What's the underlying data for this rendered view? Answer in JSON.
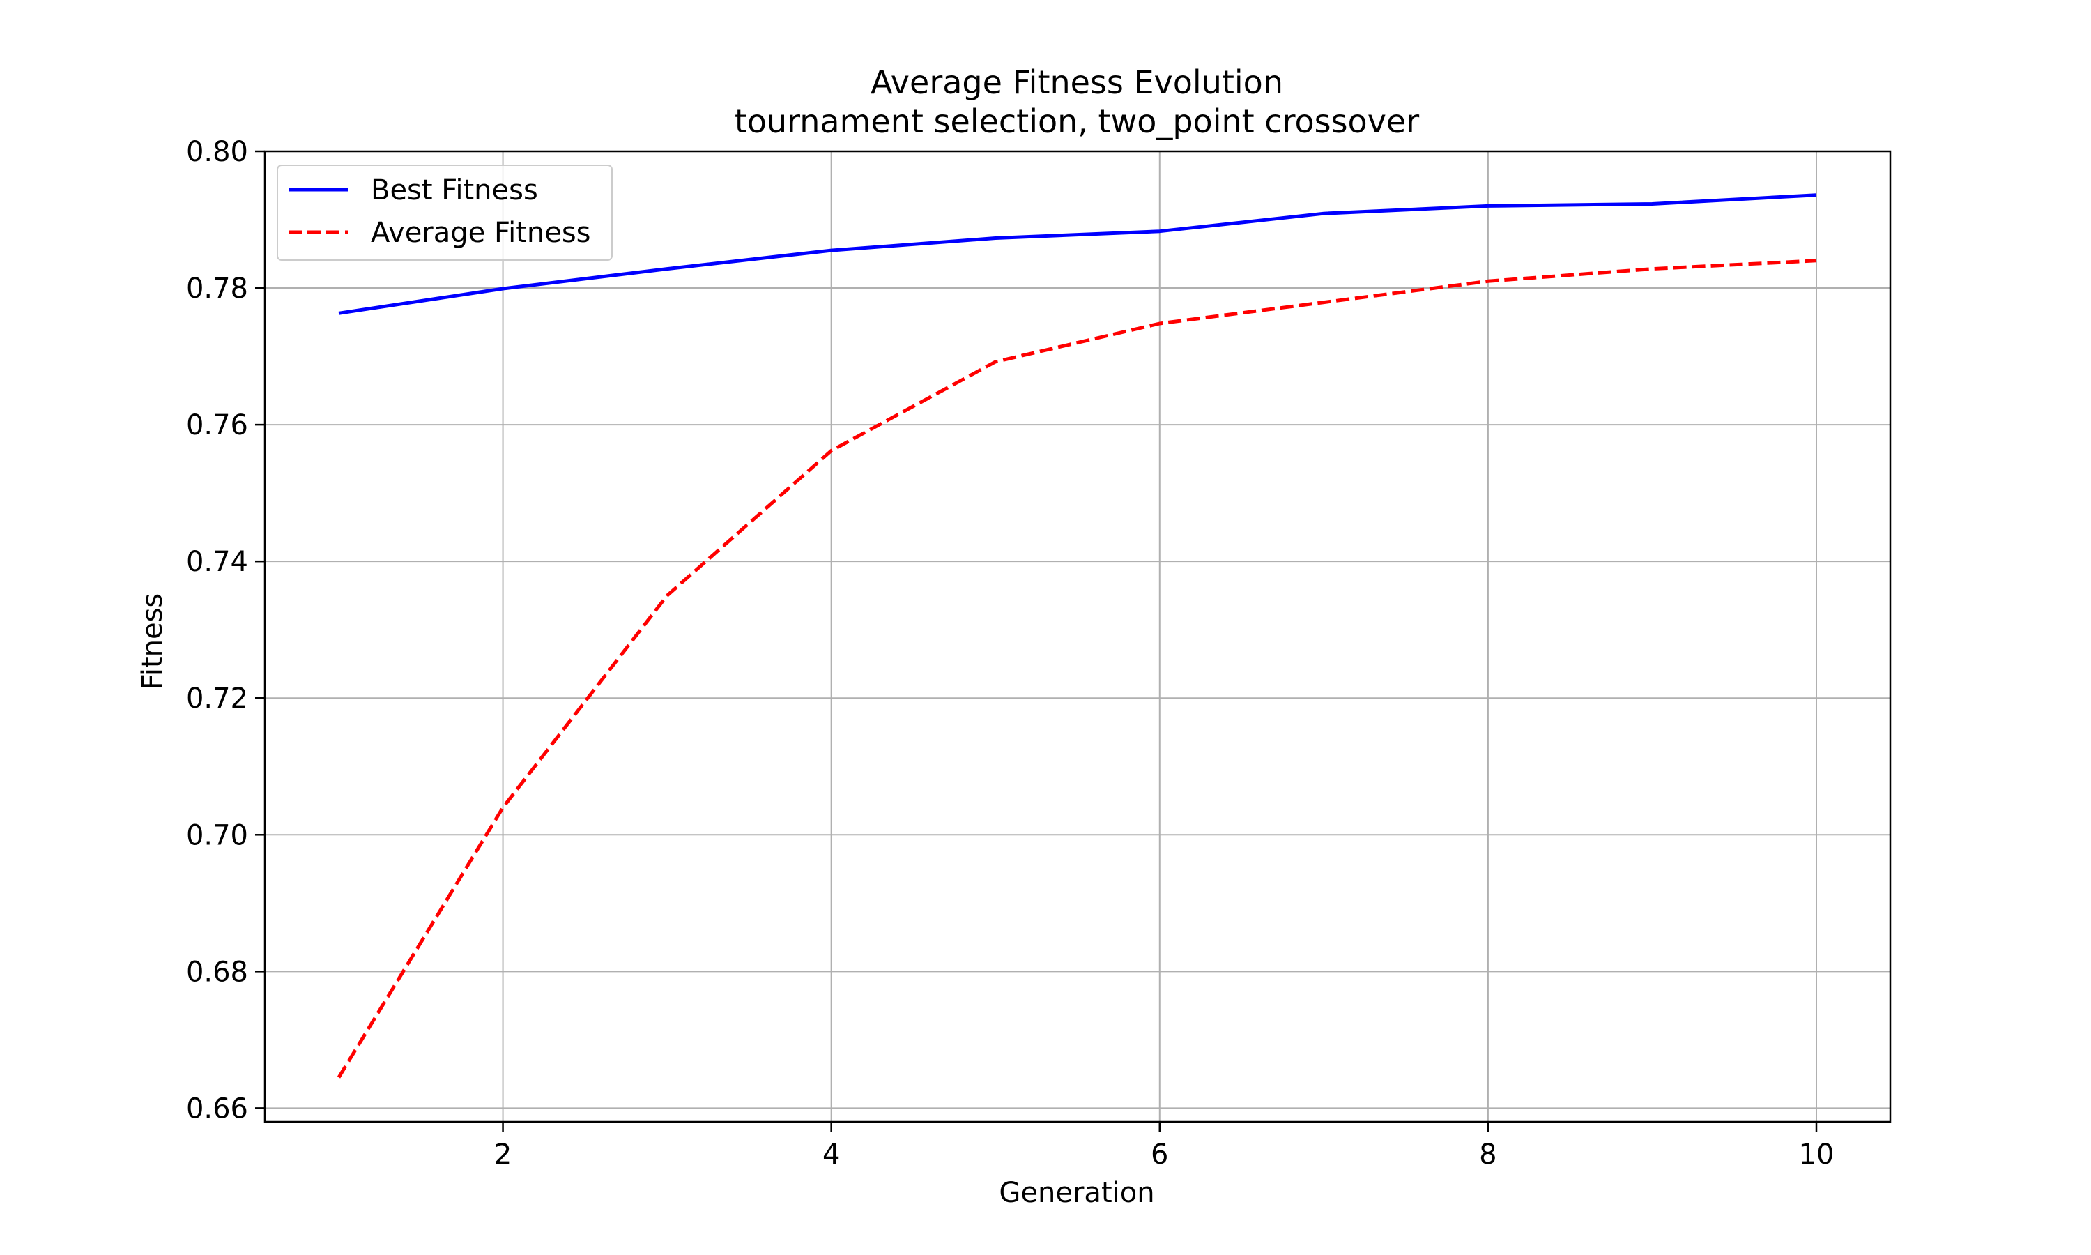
{
  "chart_data": {
    "type": "line",
    "title": "Average Fitness Evolution",
    "subtitle": "tournament selection, two_point crossover",
    "xlabel": "Generation",
    "ylabel": "Fitness",
    "x": [
      1,
      2,
      3,
      4,
      5,
      6,
      7,
      8,
      9,
      10
    ],
    "xlim": [
      0.55,
      10.45
    ],
    "ylim": [
      0.658,
      0.8
    ],
    "xticks": [
      2,
      4,
      6,
      8,
      10
    ],
    "xtick_labels": [
      "2",
      "4",
      "6",
      "8",
      "10"
    ],
    "yticks": [
      0.66,
      0.68,
      0.7,
      0.72,
      0.74,
      0.76,
      0.78,
      0.8
    ],
    "ytick_labels": [
      "0.66",
      "0.68",
      "0.70",
      "0.72",
      "0.74",
      "0.76",
      "0.78",
      "0.80"
    ],
    "grid": true,
    "legend_position": "upper-left",
    "series": [
      {
        "name": "Best Fitness",
        "color": "#0000ff",
        "style": "solid",
        "values": [
          0.7763,
          0.7799,
          0.7828,
          0.7855,
          0.7873,
          0.7883,
          0.7909,
          0.792,
          0.7923,
          0.7936
        ]
      },
      {
        "name": "Average Fitness",
        "color": "#ff0000",
        "style": "dashed",
        "values": [
          0.6645,
          0.704,
          0.735,
          0.7562,
          0.7692,
          0.7748,
          0.7779,
          0.781,
          0.7828,
          0.784
        ]
      }
    ]
  }
}
